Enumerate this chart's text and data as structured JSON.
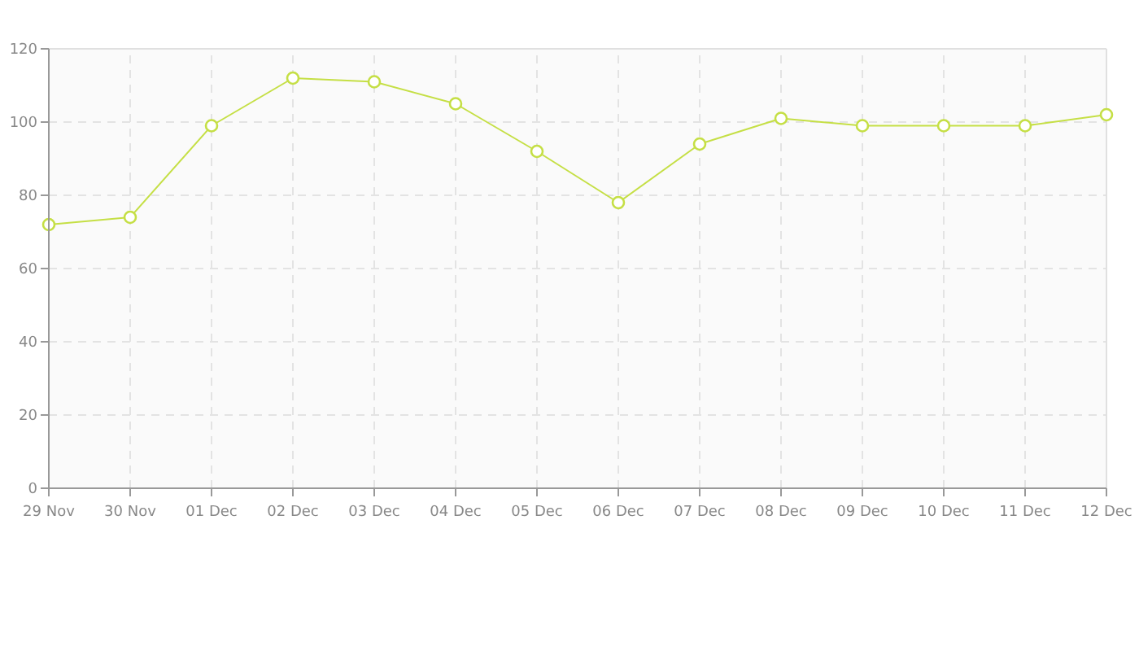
{
  "chart_data": {
    "type": "line",
    "categories": [
      "29 Nov",
      "30 Nov",
      "01 Dec",
      "02 Dec",
      "03 Dec",
      "04 Dec",
      "05 Dec",
      "06 Dec",
      "07 Dec",
      "08 Dec",
      "09 Dec",
      "10 Dec",
      "11 Dec",
      "12 Dec"
    ],
    "series": [
      {
        "color": "#c5df45",
        "values": [
          72,
          74,
          99,
          112,
          111,
          105,
          92,
          78,
          94,
          101,
          99,
          99,
          99,
          102
        ]
      }
    ],
    "ylim": [
      0,
      120
    ],
    "yticks": [
      0,
      20,
      40,
      60,
      80,
      100,
      120
    ],
    "grid": true,
    "marker": "circle",
    "line_style": "solid"
  }
}
